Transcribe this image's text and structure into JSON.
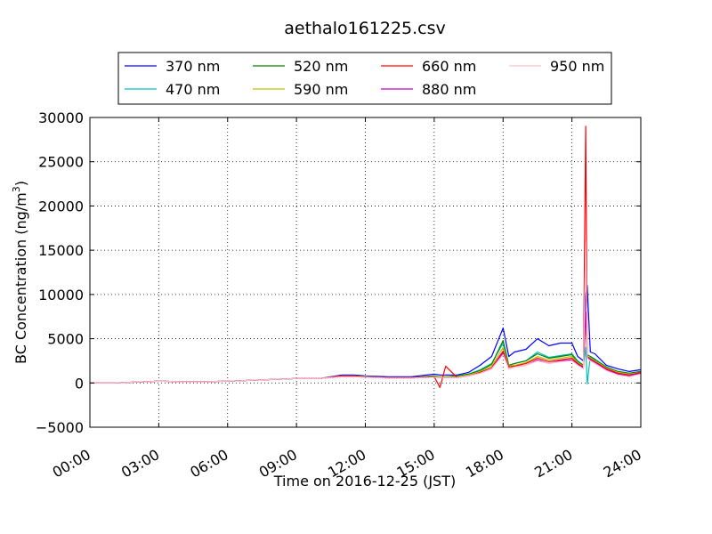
{
  "chart_data": {
    "type": "line",
    "title": "aethalo161225.csv",
    "xlabel": "Time on 2016-12-25 (JST)",
    "ylabel": "BC Concentration (ng/m",
    "ylabel_sup": "3",
    "ylabel_close": ")",
    "xlim": [
      "00:00",
      "24:00"
    ],
    "ylim": [
      -5000,
      30000
    ],
    "x_ticks": [
      "00:00",
      "03:00",
      "06:00",
      "09:00",
      "12:00",
      "15:00",
      "18:00",
      "21:00",
      "24:00"
    ],
    "y_ticks": [
      "30000",
      "25000",
      "20000",
      "15000",
      "10000",
      "5000",
      "0",
      "−5000"
    ],
    "grid": true,
    "legend_position": "top-center",
    "x": [
      "00:00",
      "01:00",
      "02:00",
      "03:00",
      "04:00",
      "05:00",
      "06:00",
      "07:00",
      "08:00",
      "09:00",
      "10:00",
      "11:00",
      "11:30",
      "12:00",
      "13:00",
      "14:00",
      "15:00",
      "15:15",
      "15:30",
      "16:00",
      "16:30",
      "17:00",
      "17:30",
      "18:00",
      "18:15",
      "18:30",
      "19:00",
      "19:30",
      "20:00",
      "20:30",
      "21:00",
      "21:15",
      "21:30",
      "21:36",
      "21:40",
      "21:48",
      "22:00",
      "22:30",
      "23:00",
      "23:30",
      "24:00"
    ],
    "series": [
      {
        "name": "370 nm",
        "color": "#0000ff",
        "values": [
          0,
          0,
          100,
          200,
          150,
          150,
          200,
          300,
          400,
          500,
          500,
          900,
          900,
          800,
          700,
          700,
          1000,
          900,
          900,
          900,
          1200,
          2000,
          3000,
          6200,
          3000,
          3500,
          3800,
          5000,
          4200,
          4500,
          4500,
          3000,
          2500,
          10000,
          11000,
          3500,
          3300,
          2000,
          1600,
          1300,
          1500
        ]
      },
      {
        "name": "470 nm",
        "color": "#00bfbf",
        "values": [
          0,
          0,
          100,
          200,
          150,
          150,
          200,
          300,
          400,
          500,
          500,
          800,
          800,
          750,
          600,
          600,
          800,
          700,
          700,
          800,
          1000,
          1500,
          2200,
          4500,
          2000,
          2200,
          2500,
          3500,
          2900,
          3100,
          3300,
          2500,
          2000,
          4000,
          -100,
          3000,
          2700,
          1800,
          1300,
          1100,
          1300
        ]
      },
      {
        "name": "520 nm",
        "color": "#008000",
        "values": [
          0,
          0,
          100,
          200,
          150,
          150,
          200,
          300,
          400,
          500,
          500,
          800,
          800,
          700,
          600,
          600,
          800,
          700,
          700,
          800,
          1000,
          1400,
          2100,
          4800,
          2000,
          2200,
          2500,
          3300,
          2800,
          3000,
          3200,
          2400,
          2000,
          8000,
          3200,
          3000,
          2600,
          1800,
          1300,
          1100,
          1300
        ]
      },
      {
        "name": "590 nm",
        "color": "#bfbf00",
        "values": [
          0,
          0,
          100,
          200,
          150,
          150,
          200,
          300,
          400,
          500,
          500,
          800,
          800,
          700,
          600,
          600,
          700,
          700,
          700,
          700,
          900,
          1300,
          1900,
          4000,
          1900,
          2000,
          2300,
          3000,
          2600,
          2800,
          3000,
          2300,
          1900,
          7000,
          3000,
          2800,
          2500,
          1700,
          1200,
          1000,
          1200
        ]
      },
      {
        "name": "660 nm",
        "color": "#ff0000",
        "values": [
          0,
          0,
          100,
          200,
          150,
          150,
          200,
          300,
          400,
          500,
          500,
          800,
          800,
          700,
          600,
          600,
          700,
          -500,
          1900,
          600,
          800,
          1200,
          1700,
          3600,
          1800,
          1900,
          2200,
          2800,
          2400,
          2600,
          2800,
          2200,
          1800,
          29000,
          3000,
          2700,
          2400,
          1600,
          1100,
          900,
          1200
        ]
      },
      {
        "name": "880 nm",
        "color": "#bf00bf",
        "values": [
          0,
          0,
          100,
          200,
          150,
          150,
          200,
          300,
          400,
          500,
          500,
          700,
          700,
          650,
          550,
          550,
          650,
          600,
          600,
          600,
          800,
          1100,
          1600,
          3400,
          1600,
          1800,
          2000,
          2600,
          2200,
          2500,
          2600,
          2100,
          1700,
          8000,
          2900,
          2600,
          2300,
          1500,
          1000,
          800,
          1100
        ]
      },
      {
        "name": "950 nm",
        "color": "#ffc0cb",
        "values": [
          0,
          0,
          100,
          200,
          150,
          150,
          200,
          300,
          400,
          500,
          500,
          700,
          700,
          650,
          550,
          550,
          650,
          600,
          600,
          600,
          800,
          1100,
          1600,
          3200,
          1600,
          1800,
          2000,
          2500,
          2200,
          2400,
          2500,
          2000,
          1600,
          16000,
          2800,
          2500,
          2200,
          1400,
          900,
          700,
          1000
        ]
      }
    ]
  }
}
